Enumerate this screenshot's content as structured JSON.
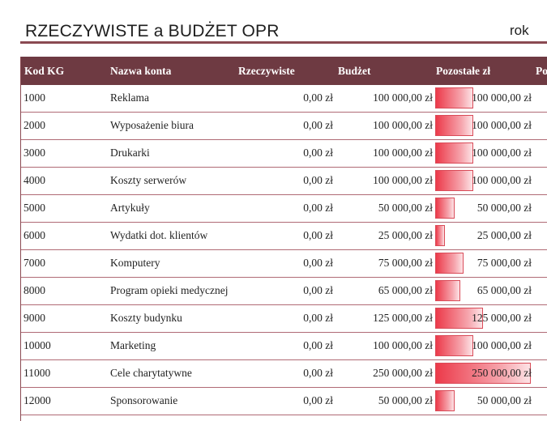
{
  "header": {
    "title": "RZECZYWISTE a BUDŻET OPR",
    "period": "rok"
  },
  "columns": {
    "code": "Kod KG",
    "name": "Nazwa konta",
    "actual": "Rzeczywiste",
    "budget": "Budżet",
    "remaining": "Pozostałe zł",
    "remaining_pct": "Po"
  },
  "colors": {
    "header_bg": "#6e3a42",
    "rule": "#8a4a52",
    "bar": "#ec3a4a"
  },
  "rows": [
    {
      "code": "1000",
      "name": "Reklama",
      "actual": "0,00 zł",
      "budget": "100 000,00 zł",
      "remaining": "100 000,00 zł",
      "remaining_value": 100000
    },
    {
      "code": "2000",
      "name": "Wyposażenie biura",
      "actual": "0,00 zł",
      "budget": "100 000,00 zł",
      "remaining": "100 000,00 zł",
      "remaining_value": 100000
    },
    {
      "code": "3000",
      "name": "Drukarki",
      "actual": "0,00 zł",
      "budget": "100 000,00 zł",
      "remaining": "100 000,00 zł",
      "remaining_value": 100000
    },
    {
      "code": "4000",
      "name": "Koszty serwerów",
      "actual": "0,00 zł",
      "budget": "100 000,00 zł",
      "remaining": "100 000,00 zł",
      "remaining_value": 100000
    },
    {
      "code": "5000",
      "name": "Artykuły",
      "actual": "0,00 zł",
      "budget": "50 000,00 zł",
      "remaining": "50 000,00 zł",
      "remaining_value": 50000
    },
    {
      "code": "6000",
      "name": "Wydatki dot. klientów",
      "actual": "0,00 zł",
      "budget": "25 000,00 zł",
      "remaining": "25 000,00 zł",
      "remaining_value": 25000
    },
    {
      "code": "7000",
      "name": "Komputery",
      "actual": "0,00 zł",
      "budget": "75 000,00 zł",
      "remaining": "75 000,00 zł",
      "remaining_value": 75000
    },
    {
      "code": "8000",
      "name": "Program opieki medycznej",
      "actual": "0,00 zł",
      "budget": "65 000,00 zł",
      "remaining": "65 000,00 zł",
      "remaining_value": 65000
    },
    {
      "code": "9000",
      "name": "Koszty budynku",
      "actual": "0,00 zł",
      "budget": "125 000,00 zł",
      "remaining": "125 000,00 zł",
      "remaining_value": 125000
    },
    {
      "code": "10000",
      "name": "Marketing",
      "actual": "0,00 zł",
      "budget": "100 000,00 zł",
      "remaining": "100 000,00 zł",
      "remaining_value": 100000
    },
    {
      "code": "11000",
      "name": "Cele charytatywne",
      "actual": "0,00 zł",
      "budget": "250 000,00 zł",
      "remaining": "250 000,00 zł",
      "remaining_value": 250000
    },
    {
      "code": "12000",
      "name": "Sponsorowanie",
      "actual": "0,00 zł",
      "budget": "50 000,00 zł",
      "remaining": "50 000,00 zł",
      "remaining_value": 50000
    }
  ],
  "remaining_scale_max": 250000
}
